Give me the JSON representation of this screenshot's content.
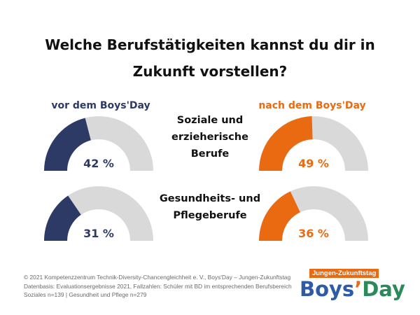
{
  "header": {
    "title_line1": "Welche Berufstätigkeiten kannst du dir in",
    "title_line2": "Zukunft vorstellen?"
  },
  "chart_data": {
    "type": "gauge",
    "title": "Welche Berufstätigkeiten kannst du dir in Zukunft vorstellen?",
    "ylim": [
      0,
      100
    ],
    "unit": "%",
    "categories": [
      {
        "line1": "Soziale und",
        "line2": "erzieherische",
        "line3": "Berufe"
      },
      {
        "line1": "Gesundheits- und",
        "line2": "Pflegeberufe",
        "line3": ""
      }
    ],
    "series": [
      {
        "name": "vor dem Boys'Day",
        "color": "#2e3a66",
        "values": [
          42,
          31
        ],
        "labels": [
          "42 %",
          "31 %"
        ]
      },
      {
        "name": "nach dem Boys'Day",
        "color": "#ea6a12",
        "values": [
          49,
          36
        ],
        "labels": [
          "49 %",
          "36 %"
        ]
      }
    ],
    "track_color": "#d9d9d9"
  },
  "footer": {
    "line1": "© 2021 Kompetenzzentrum Technik-Diversity-Chancengleichheit e. V., Boys'Day – Jungen-Zukunftstag",
    "line2": "Datenbasis: Evaluationsergebnisse 2021, Fallzahlen: Schüler mit BD im entsprechenden Berufsbereich",
    "line3": "Soziales n=139 | Gesundheit und Pflege n=279"
  },
  "logo": {
    "tagline": "Jungen-Zukunftstag",
    "word_part1": "Boys",
    "word_apostrophe": "’",
    "word_part2": "Day"
  }
}
